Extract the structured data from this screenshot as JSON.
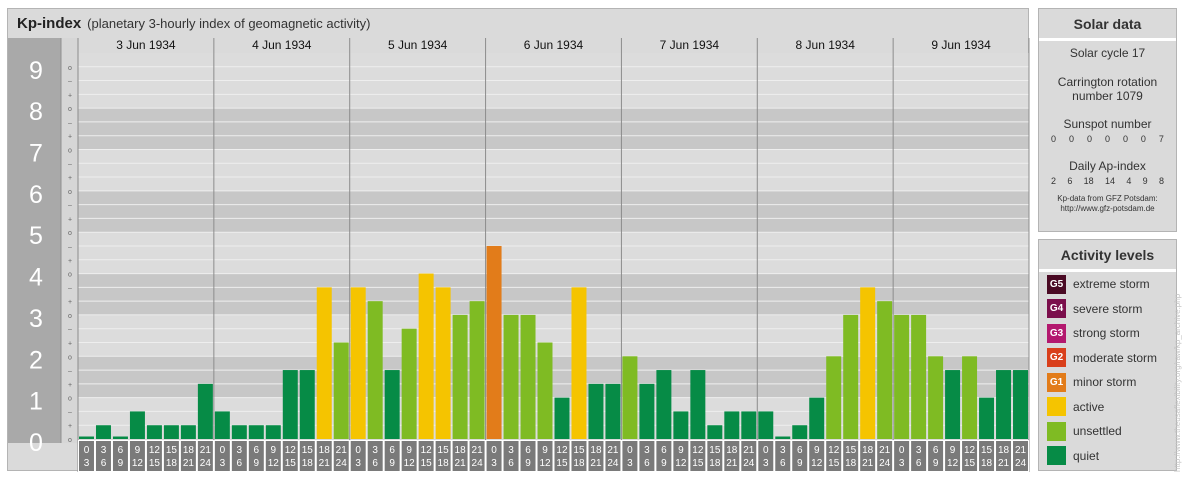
{
  "header": {
    "title": "Kp-index",
    "subtitle": "(planetary 3-hourly index of geomagnetic activity)"
  },
  "chart_data": {
    "type": "bar",
    "title": "Kp-index",
    "subtitle": "(planetary 3-hourly index of geomagnetic activity)",
    "ylim": [
      0,
      9
    ],
    "y_ticks": [
      "0",
      "1",
      "2",
      "3",
      "4",
      "5",
      "6",
      "7",
      "8",
      "9"
    ],
    "minor_tick_labels": [
      "o",
      "+",
      "–"
    ],
    "days": [
      "3 Jun 1934",
      "4 Jun 1934",
      "5 Jun 1934",
      "6 Jun 1934",
      "7 Jun 1934",
      "8 Jun 1934",
      "9 Jun 1934"
    ],
    "interval_starts": [
      "0",
      "3",
      "6",
      "9",
      "12",
      "15",
      "18",
      "21"
    ],
    "interval_ends": [
      "3",
      "6",
      "9",
      "12",
      "15",
      "18",
      "21",
      "24"
    ],
    "series": [
      {
        "values": [
          0.0,
          0.333,
          0.0,
          0.667,
          0.333,
          0.333,
          0.333,
          1.333,
          0.667,
          0.333,
          0.333,
          0.333,
          1.667,
          1.667,
          3.667,
          2.333,
          3.667,
          3.333,
          1.667,
          2.667,
          4.0,
          3.667,
          3.0,
          3.333,
          4.667,
          3.0,
          3.0,
          2.333,
          1.0,
          3.667,
          1.333,
          1.333,
          2.0,
          1.333,
          1.667,
          0.667,
          1.667,
          0.333,
          0.667,
          0.667,
          0.667,
          0.0,
          0.333,
          1.0,
          2.0,
          3.0,
          3.667,
          3.333,
          3.0,
          3.0,
          2.0,
          1.667,
          2.0,
          1.0,
          1.667,
          1.667
        ]
      }
    ],
    "color_scale": [
      {
        "min_kp": 0,
        "color": "#068b46"
      },
      {
        "min_kp": 2,
        "color": "#7fbb23"
      },
      {
        "min_kp": 3.5,
        "color": "#f5c400"
      },
      {
        "min_kp": 4.5,
        "color": "#e27c1a"
      }
    ],
    "grid": true
  },
  "solar": {
    "title": "Solar data",
    "cycle": "Solar cycle 17",
    "carrington_1": "Carrington rotation",
    "carrington_2": "number 1079",
    "sunspot_title": "Sunspot number",
    "sunspot_values": [
      "0",
      "0",
      "0",
      "0",
      "0",
      "0",
      "7"
    ],
    "ap_title": "Daily Ap-index",
    "ap_values": [
      "2",
      "6",
      "18",
      "14",
      "4",
      "9",
      "8"
    ],
    "credit_1": "Kp-data from GFZ Potsdam:",
    "credit_2": "http://www.gfz-potsdam.de"
  },
  "activity": {
    "title": "Activity levels",
    "items": [
      {
        "badge": "G5",
        "label": "extreme storm",
        "color": "#4a0a24"
      },
      {
        "badge": "G4",
        "label": "severe storm",
        "color": "#7b0f4c"
      },
      {
        "badge": "G3",
        "label": "strong storm",
        "color": "#b3186e"
      },
      {
        "badge": "G2",
        "label": "moderate storm",
        "color": "#d93f1b"
      },
      {
        "badge": "G1",
        "label": "minor storm",
        "color": "#e27c1a"
      },
      {
        "badge": "",
        "label": "active",
        "color": "#f5c400"
      },
      {
        "badge": "",
        "label": "unsettled",
        "color": "#7fbb23"
      },
      {
        "badge": "",
        "label": "quiet",
        "color": "#068b46"
      }
    ]
  },
  "footer": {
    "url": "http://www.theusaflexibility.org/raw/kp_archive.php"
  }
}
